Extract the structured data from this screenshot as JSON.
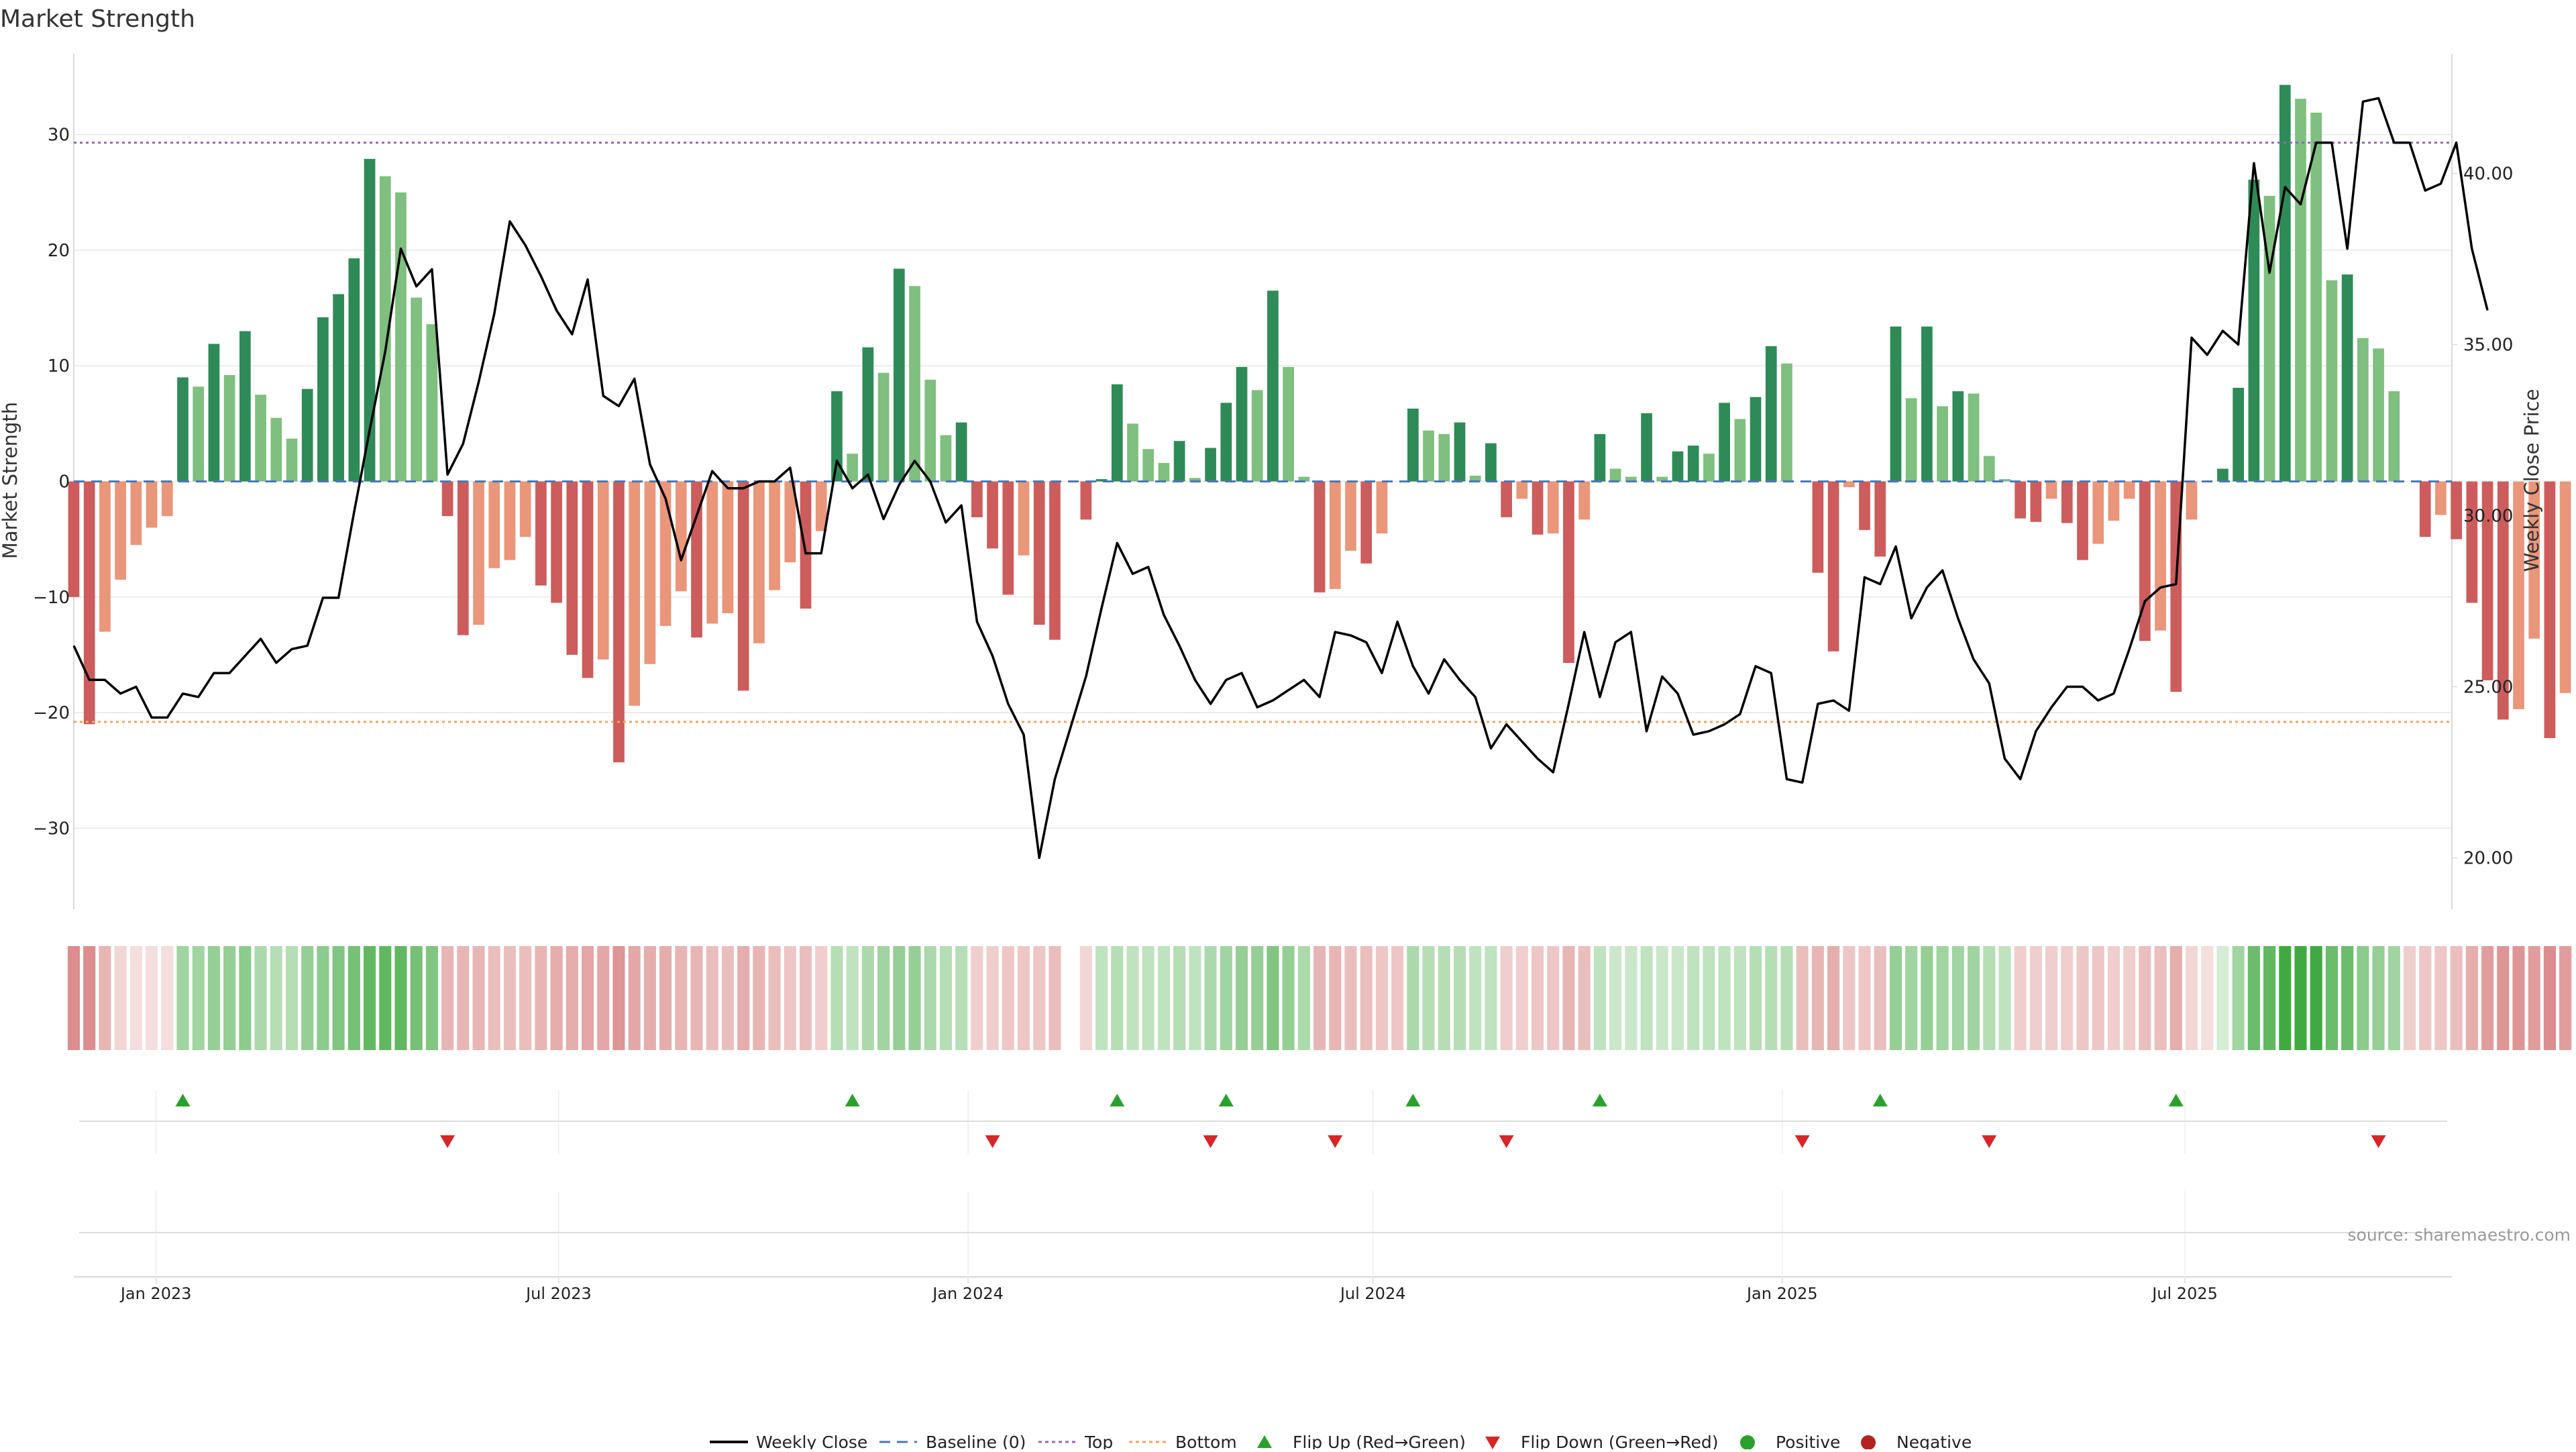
{
  "chart_data": {
    "type": "bar",
    "title": "Market Strength",
    "ylabel": "Market Strength",
    "y2label": "Weekly Close Price",
    "ylim": [
      -37,
      37
    ],
    "y2lim": [
      18.5,
      43.5
    ],
    "yticks": [
      -30,
      -20,
      -10,
      0,
      10,
      20,
      30
    ],
    "y2ticks": [
      "20.00",
      "25.00",
      "30.00",
      "35.00",
      "40.00"
    ],
    "x_start": "2022-11-25",
    "x_end": "2025-10-29",
    "xticks": [
      {
        "date": "2023-01-01",
        "label": "Jan 2023"
      },
      {
        "date": "2023-07-01",
        "label": "Jul 2023"
      },
      {
        "date": "2024-01-01",
        "label": "Jan 2024"
      },
      {
        "date": "2024-07-01",
        "label": "Jul 2024"
      },
      {
        "date": "2025-01-01",
        "label": "Jan 2025"
      },
      {
        "date": "2025-07-01",
        "label": "Jul 2025"
      }
    ],
    "first_week": "2022-11-25",
    "top_level": 29.3,
    "bottom_level": -20.8,
    "strength_values": [
      -10,
      -21,
      -13,
      -8.5,
      -5.5,
      -4,
      -3,
      9,
      8.2,
      11.9,
      9.2,
      13,
      7.5,
      5.5,
      3.7,
      8,
      14.2,
      16.2,
      19.3,
      27.9,
      26.4,
      25,
      15.9,
      13.6,
      -3,
      -13.3,
      -12.4,
      -7.5,
      -6.8,
      -4.8,
      -9,
      -10.5,
      -15,
      -17,
      -15.4,
      -24.3,
      -19.4,
      -15.8,
      -12.5,
      -9.5,
      -13.5,
      -12.3,
      -11.4,
      -18.1,
      -14,
      -9.4,
      -7,
      -11,
      -4.3,
      7.8,
      2.4,
      11.6,
      9.4,
      18.4,
      16.9,
      8.8,
      4,
      5.1,
      -3.1,
      -5.8,
      -9.8,
      -6.4,
      -12.4,
      -13.7,
      0,
      -3.3,
      0.2,
      8.4,
      5,
      2.8,
      1.6,
      3.5,
      0.3,
      2.9,
      6.8,
      9.9,
      7.9,
      16.5,
      9.9,
      0.4,
      -9.6,
      -9.3,
      -6,
      -7.1,
      -4.5,
      0,
      6.3,
      4.4,
      4.1,
      5.1,
      0.5,
      3.3,
      -3.1,
      -1.5,
      -4.6,
      -4.5,
      -15.7,
      -3.3,
      4.1,
      1.1,
      0.4,
      5.9,
      0.4,
      2.6,
      3.1,
      2.4,
      6.8,
      5.4,
      7.3,
      11.7,
      10.2,
      0,
      -7.9,
      -14.7,
      -0.5,
      -4.2,
      -6.5,
      13.4,
      7.2,
      13.4,
      6.5,
      7.8,
      7.6,
      2.2,
      0.2,
      -3.2,
      -3.5,
      -1.5,
      -3.6,
      -6.8,
      -5.4,
      -3.4,
      -1.5,
      -13.8,
      -12.9,
      -18.2,
      -3.3,
      0,
      1.1,
      8.1,
      26.1,
      24.7,
      34.3,
      33.1,
      31.9,
      17.4,
      17.9,
      12.4,
      11.5,
      7.8,
      0,
      -4.8,
      -2.9,
      -5,
      -10.5,
      -17.2,
      -20.6,
      -19.7,
      -13.6,
      -22.2,
      -18.3
    ],
    "band_alphas": [
      0.7,
      0.7,
      0.45,
      0.25,
      0.2,
      0.2,
      0.2,
      0.45,
      0.45,
      0.5,
      0.5,
      0.55,
      0.4,
      0.35,
      0.35,
      0.5,
      0.55,
      0.6,
      0.65,
      0.75,
      0.75,
      0.75,
      0.65,
      0.6,
      0.45,
      0.45,
      0.45,
      0.4,
      0.4,
      0.4,
      0.45,
      0.5,
      0.5,
      0.55,
      0.55,
      0.65,
      0.55,
      0.5,
      0.5,
      0.45,
      0.45,
      0.4,
      0.4,
      0.5,
      0.45,
      0.4,
      0.35,
      0.4,
      0.3,
      0.35,
      0.3,
      0.4,
      0.45,
      0.5,
      0.5,
      0.4,
      0.35,
      0.35,
      0.3,
      0.3,
      0.35,
      0.35,
      0.35,
      0.4,
      0,
      0.25,
      0.3,
      0.35,
      0.3,
      0.3,
      0.3,
      0.35,
      0.3,
      0.4,
      0.45,
      0.5,
      0.5,
      0.6,
      0.5,
      0.4,
      0.45,
      0.45,
      0.4,
      0.4,
      0.35,
      0.35,
      0.4,
      0.35,
      0.35,
      0.35,
      0.3,
      0.3,
      0.3,
      0.3,
      0.35,
      0.35,
      0.45,
      0.4,
      0.3,
      0.25,
      0.25,
      0.3,
      0.25,
      0.25,
      0.3,
      0.3,
      0.3,
      0.3,
      0.35,
      0.35,
      0.35,
      0.4,
      0.45,
      0.5,
      0.35,
      0.35,
      0.4,
      0.5,
      0.45,
      0.5,
      0.45,
      0.45,
      0.45,
      0.35,
      0.3,
      0.3,
      0.3,
      0.3,
      0.3,
      0.35,
      0.35,
      0.3,
      0.3,
      0.4,
      0.4,
      0.5,
      0.25,
      0.2,
      0.2,
      0.45,
      0.7,
      0.75,
      0.9,
      0.9,
      0.9,
      0.7,
      0.7,
      0.55,
      0.5,
      0.45,
      0.3,
      0.35,
      0.35,
      0.4,
      0.5,
      0.6,
      0.65,
      0.65,
      0.6,
      0.7,
      0.6
    ],
    "price_values": [
      26.2,
      25.2,
      25.2,
      24.8,
      25,
      24.1,
      24.1,
      24.8,
      24.7,
      25.4,
      25.4,
      25.9,
      26.4,
      25.7,
      26.1,
      26.2,
      27.6,
      27.6,
      30.1,
      32.5,
      34.8,
      37.8,
      36.7,
      37.2,
      31.2,
      32.1,
      33.9,
      35.9,
      38.6,
      37.9,
      37,
      36,
      35.3,
      36.9,
      33.5,
      33.2,
      34,
      31.5,
      30.5,
      28.7,
      30,
      31.3,
      30.8,
      30.8,
      31,
      31,
      31.4,
      28.9,
      28.9,
      31.6,
      30.8,
      31.2,
      29.9,
      30.9,
      31.6,
      31,
      29.8,
      30.3,
      26.9,
      25.9,
      24.5,
      23.6,
      20,
      22.3,
      23.8,
      25.3,
      27.3,
      29.2,
      28.3,
      28.5,
      27.1,
      26.2,
      25.2,
      24.5,
      25.2,
      25.4,
      24.4,
      24.6,
      24.9,
      25.2,
      24.7,
      26.6,
      26.5,
      26.3,
      25.4,
      26.9,
      25.6,
      24.8,
      25.8,
      25.2,
      24.7,
      23.2,
      23.9,
      23.4,
      22.9,
      22.5,
      24.5,
      26.6,
      24.7,
      26.3,
      26.6,
      23.7,
      25.3,
      24.8,
      23.6,
      23.7,
      23.9,
      24.2,
      25.6,
      25.4,
      22.3,
      22.2,
      24.5,
      24.6,
      24.3,
      28.2,
      28,
      29.1,
      27,
      27.9,
      28.4,
      27,
      25.8,
      25.1,
      22.9,
      22.3,
      23.7,
      24.4,
      25,
      25,
      24.6,
      24.8,
      26.1,
      27.5,
      27.9,
      28,
      35.2,
      34.7,
      35.4,
      35,
      40.3,
      37.1,
      39.6,
      39.1,
      40.9,
      40.9,
      37.8,
      42.1,
      42.2,
      40.9,
      40.9,
      39.5,
      39.7,
      40.9,
      37.8,
      36
    ],
    "flips_up": [
      {
        "idx": 7,
        "label": "2023-01-13"
      },
      {
        "idx": 50,
        "label": "2023-11-10"
      },
      {
        "idx": 67,
        "label": "2024-03-08"
      },
      {
        "idx": 74,
        "label": "2024-04-26"
      },
      {
        "idx": 86,
        "label": "2024-07-19"
      },
      {
        "idx": 98,
        "label": "2024-10-11"
      },
      {
        "idx": 116,
        "label": "2025-02-14"
      },
      {
        "idx": 135,
        "label": "2025-06-27"
      }
    ],
    "flips_down": [
      {
        "idx": 24,
        "label": "2023-05-12"
      },
      {
        "idx": 59,
        "label": "2024-01-12"
      },
      {
        "idx": 73,
        "label": "2024-04-19"
      },
      {
        "idx": 81,
        "label": "2024-06-14"
      },
      {
        "idx": 92,
        "label": "2024-08-30"
      },
      {
        "idx": 111,
        "label": "2025-01-10"
      },
      {
        "idx": 123,
        "label": "2025-04-04"
      },
      {
        "idx": 148,
        "label": "2025-09-12"
      }
    ],
    "colors": {
      "strong_pos": "#2e8b57",
      "weak_pos": "#7fbf7f",
      "strong_neg": "#cd5c5c",
      "weak_neg": "#e9967a",
      "band_pos": "#2ca02c",
      "band_neg": "#cd5c5c",
      "price_line": "#000000",
      "baseline": "#4a78b5",
      "top_line": "#9467bd",
      "bottom_line": "#f4a261",
      "flip_up": "#2ca02c",
      "flip_down": "#d62728",
      "positive": "#2ca02c",
      "negative": "#b22222",
      "grid": "#e6e6e6",
      "axis": "#d9d9d9",
      "text": "#222222",
      "source": "#999999"
    }
  },
  "legend": {
    "weekly_close": "Weekly Close",
    "baseline": "Baseline (0)",
    "top": "Top",
    "bottom": "Bottom",
    "flip_up": "Flip Up (Red→Green)",
    "flip_down": "Flip Down (Green→Red)",
    "positive": "Positive",
    "negative": "Negative"
  },
  "source": "source: sharemaestro.com"
}
